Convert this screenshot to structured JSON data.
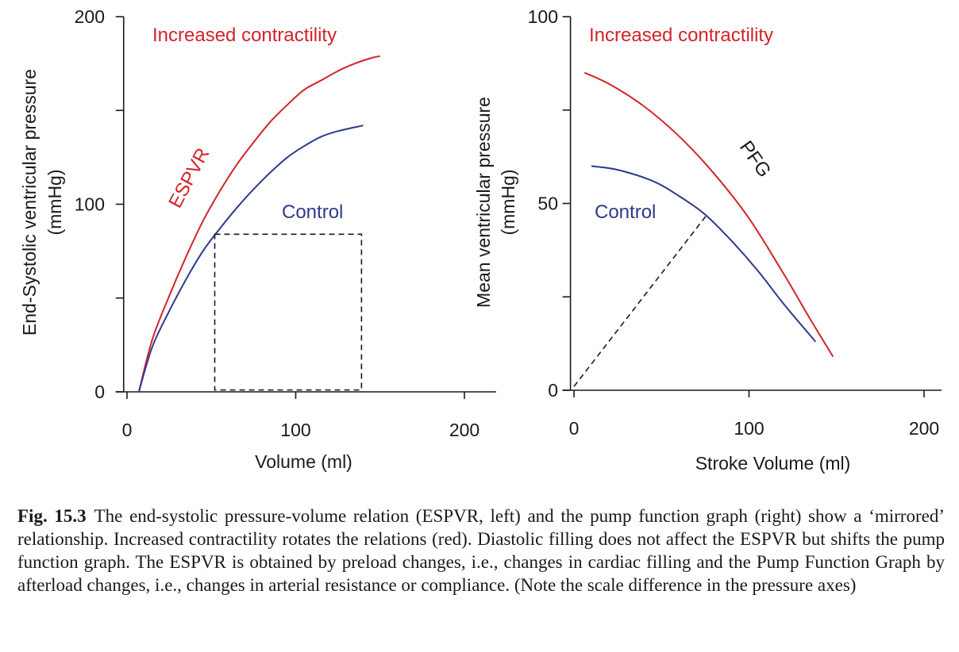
{
  "chart_data": [
    {
      "type": "line",
      "xlabel": "Volume (ml)",
      "ylabel": "End-Systolic ventricular pressure",
      "ylabel_unit": "(mmHg)",
      "xlim": [
        -2,
        220
      ],
      "ylim": [
        0,
        200
      ],
      "x_ticks": [
        0,
        100,
        200
      ],
      "y_ticks": [
        0,
        100,
        200
      ],
      "y_minor_ticks": [
        50,
        150
      ],
      "grid": false,
      "annotations": [
        {
          "text": "Increased contractility",
          "color": "#d3232a"
        },
        {
          "text": "ESPVR",
          "color": "#d3232a"
        },
        {
          "text": "Control",
          "color": "#2e3a8c"
        }
      ],
      "series": [
        {
          "color": "#d3232a",
          "x": [
            7,
            15,
            25,
            35,
            45,
            55,
            65,
            75,
            85,
            95,
            105,
            115,
            125,
            135,
            145,
            150
          ],
          "y": [
            0,
            28,
            51,
            72,
            91,
            107,
            121,
            133,
            144,
            153,
            161,
            166,
            171,
            175,
            178,
            179
          ]
        },
        {
          "color": "#2e3a8c",
          "x": [
            7,
            15,
            25,
            35,
            45,
            55,
            65,
            75,
            85,
            95,
            105,
            115,
            125,
            140
          ],
          "y": [
            0,
            24,
            43,
            60,
            75,
            87,
            98,
            108,
            117,
            125,
            131,
            136,
            139,
            142
          ]
        }
      ],
      "dashed_box": {
        "x": [
          52,
          139
        ],
        "y": [
          1,
          84
        ]
      }
    },
    {
      "type": "line",
      "xlabel": "Stroke Volume (ml)",
      "ylabel": "Mean ventricular pressure",
      "ylabel_unit": "(mmHg)",
      "xlim": [
        -2,
        215
      ],
      "ylim": [
        0,
        100
      ],
      "x_ticks": [
        0,
        100,
        200
      ],
      "y_ticks": [
        0,
        50,
        100
      ],
      "y_minor_ticks": [
        25,
        75
      ],
      "grid": false,
      "annotations": [
        {
          "text": "Increased contractility",
          "color": "#d3232a"
        },
        {
          "text": "PFG",
          "color": "#1a1a1a"
        },
        {
          "text": "Control",
          "color": "#2e3a8c"
        }
      ],
      "series": [
        {
          "color": "#d3232a",
          "x": [
            6,
            20,
            40,
            60,
            80,
            100,
            120,
            135,
            148
          ],
          "y": [
            85,
            82,
            76,
            68,
            58,
            46,
            31,
            19,
            9
          ]
        },
        {
          "color": "#2e3a8c",
          "x": [
            10,
            25,
            45,
            60,
            75,
            90,
            105,
            120,
            138
          ],
          "y": [
            60,
            59,
            56,
            52,
            47,
            40,
            32,
            23,
            13
          ]
        }
      ],
      "dashed_line": {
        "x": [
          0,
          76
        ],
        "y": [
          1,
          47
        ]
      }
    }
  ],
  "caption": {
    "label": "Fig. 15.3",
    "text": "The end-systolic pressure-volume relation (ESPVR, left) and the pump function graph (right) show a ‘mirrored’ relationship. Increased contractility rotates the relations (red). Diastolic filling does not affect the ESPVR but shifts the pump function graph. The ESPVR is obtained by preload changes, i.e., changes in cardiac filling and the Pump Function Graph by afterload changes, i.e., changes in arterial resistance or compliance. (Note the scale difference in the pressure axes)"
  }
}
